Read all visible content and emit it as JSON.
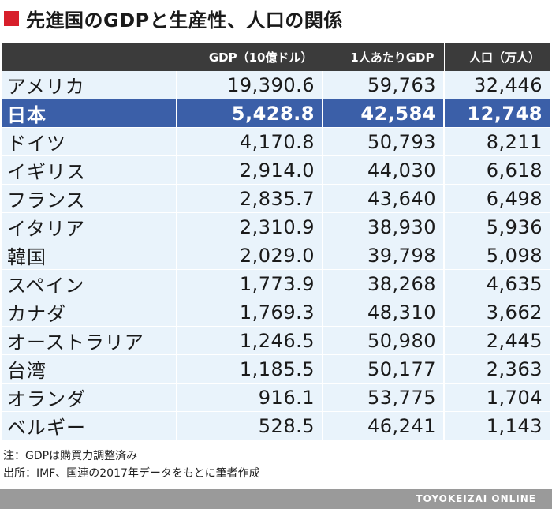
{
  "title": "先進国のGDPと生産性、人口の関係",
  "colors": {
    "accent_square": "#d71f2b",
    "header_bg": "#3b3b3b",
    "row_bg": "#e9f3fb",
    "highlight_row_bg": "#3b5fa8",
    "footer_bg": "#9a9a9a"
  },
  "chart_data": {
    "type": "table",
    "title": "先進国のGDPと生産性、人口の関係",
    "columns": [
      "",
      "GDP（10億ドル）",
      "1人あたりGDP",
      "人口（万人）"
    ],
    "highlight_row": "日本",
    "rows": [
      [
        "アメリカ",
        "19,390.6",
        "59,763",
        "32,446"
      ],
      [
        "日本",
        "5,428.8",
        "42,584",
        "12,748"
      ],
      [
        "ドイツ",
        "4,170.8",
        "50,793",
        "8,211"
      ],
      [
        "イギリス",
        "2,914.0",
        "44,030",
        "6,618"
      ],
      [
        "フランス",
        "2,835.7",
        "43,640",
        "6,498"
      ],
      [
        "イタリア",
        "2,310.9",
        "38,930",
        "5,936"
      ],
      [
        "韓国",
        "2,029.0",
        "39,798",
        "5,098"
      ],
      [
        "スペイン",
        "1,773.9",
        "38,268",
        "4,635"
      ],
      [
        "カナダ",
        "1,769.3",
        "48,310",
        "3,662"
      ],
      [
        "オーストラリア",
        "1,246.5",
        "50,980",
        "2,445"
      ],
      [
        "台湾",
        "1,185.5",
        "50,177",
        "2,363"
      ],
      [
        "オランダ",
        "916.1",
        "53,775",
        "1,704"
      ],
      [
        "ベルギー",
        "528.5",
        "46,241",
        "1,143"
      ]
    ]
  },
  "notes": [
    "注：GDPは購買力調整済み",
    "出所：IMF、国連の2017年データをもとに筆者作成"
  ],
  "footer": "TOYOKEIZAI ONLINE"
}
